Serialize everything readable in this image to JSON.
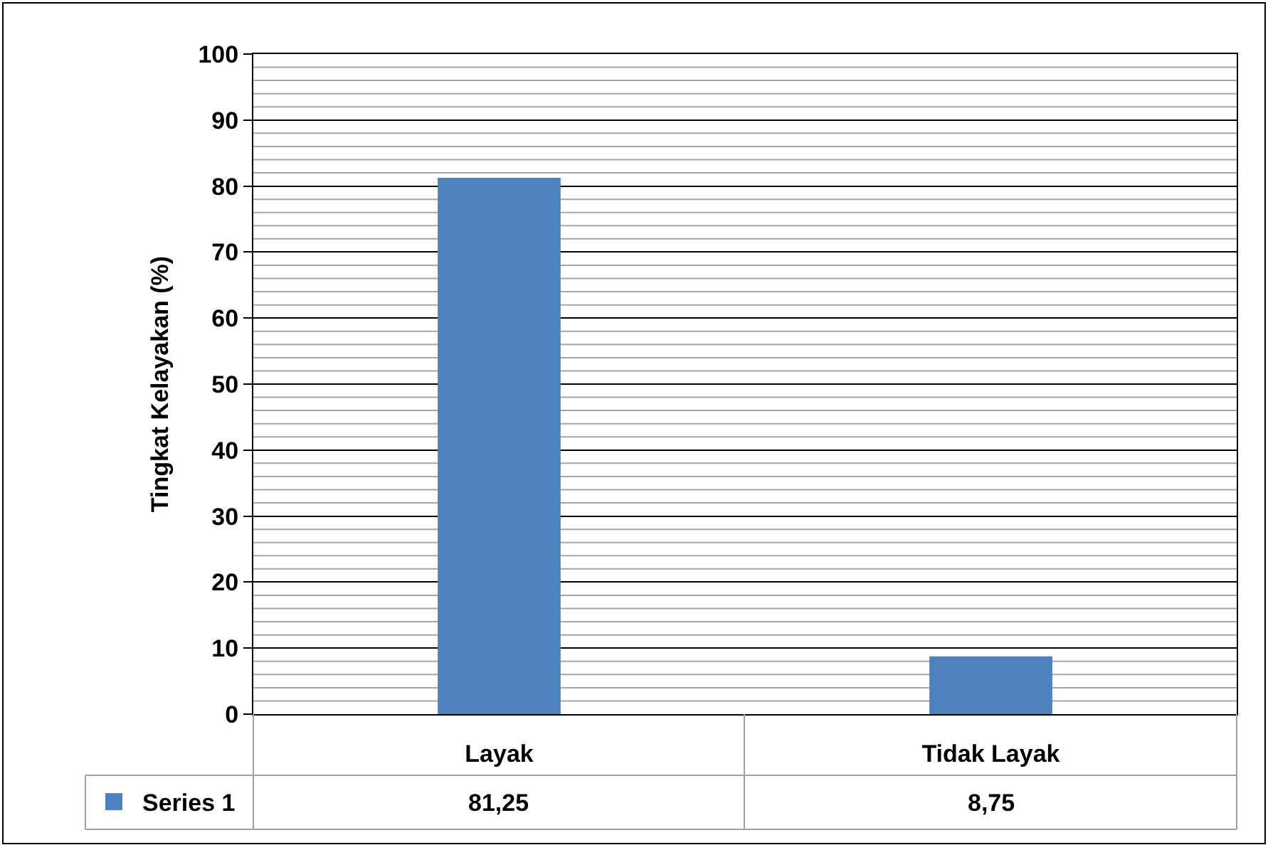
{
  "chart_data": {
    "type": "bar",
    "ylabel": "Tingkat Kelayakan (%)",
    "categories": [
      "Layak",
      "Tidak Layak"
    ],
    "series": [
      {
        "name": "Series 1",
        "color": "#4f81bd",
        "values": [
          81.25,
          8.75
        ],
        "value_labels": [
          "81,25",
          "8,75"
        ]
      }
    ],
    "ylim": [
      0,
      100
    ],
    "yticks": [
      0,
      {
        "value": 2,
        "label": null
      },
      {
        "value": 4,
        "label": null
      },
      {
        "value": 6,
        "label": null
      },
      {
        "value": 8,
        "label": null
      },
      10,
      {
        "value": 12,
        "label": null
      },
      {
        "value": 14,
        "label": null
      },
      {
        "value": 16,
        "label": null
      },
      {
        "value": 18,
        "label": null
      },
      20,
      {
        "value": 22,
        "label": null
      },
      {
        "value": 24,
        "label": null
      },
      {
        "value": 26,
        "label": null
      },
      {
        "value": 28,
        "label": null
      },
      30,
      {
        "value": 32,
        "label": null
      },
      {
        "value": 34,
        "label": null
      },
      {
        "value": 36,
        "label": null
      },
      {
        "value": 38,
        "label": null
      },
      40,
      {
        "value": 42,
        "label": null
      },
      {
        "value": 44,
        "label": null
      },
      {
        "value": 46,
        "label": null
      },
      {
        "value": 48,
        "label": null
      },
      50,
      {
        "value": 52,
        "label": null
      },
      {
        "value": 54,
        "label": null
      },
      {
        "value": 56,
        "label": null
      },
      {
        "value": 58,
        "label": null
      },
      60,
      {
        "value": 62,
        "label": null
      },
      {
        "value": 64,
        "label": null
      },
      {
        "value": 66,
        "label": null
      },
      {
        "value": 68,
        "label": null
      },
      70,
      {
        "value": 72,
        "label": null
      },
      {
        "value": 74,
        "label": null
      },
      {
        "value": 76,
        "label": null
      },
      {
        "value": 78,
        "label": null
      },
      80,
      {
        "value": 82,
        "label": null
      },
      {
        "value": 84,
        "label": null
      },
      {
        "value": 86,
        "label": null
      },
      {
        "value": 88,
        "label": null
      },
      90,
      {
        "value": 92,
        "label": null
      },
      {
        "value": 94,
        "label": null
      },
      {
        "value": 96,
        "label": null
      },
      {
        "value": 98,
        "label": null
      },
      100
    ],
    "grid": true,
    "legend": "bottom left"
  }
}
